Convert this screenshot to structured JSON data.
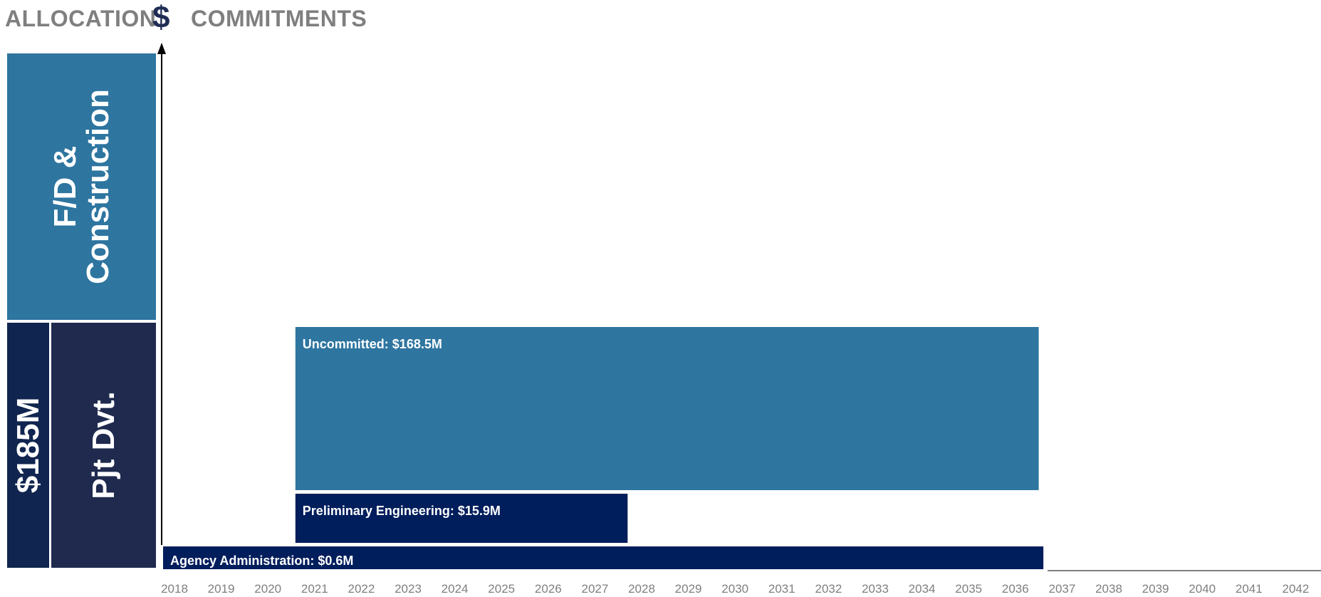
{
  "header": {
    "allocation": "ALLOCATION",
    "dollar": "$",
    "commitments": "COMMITMENTS"
  },
  "allocation_blocks": {
    "fd_construction": "F/D & Construction",
    "total": "$185M",
    "project_development": "Pjt Dvt."
  },
  "colors": {
    "fd_construction": "#2e75a0",
    "total": "#10254f",
    "project_development": "#1f2a4e",
    "uncommitted": "#2e75a0",
    "engineering": "#001d5c",
    "admin": "#001d5c",
    "axis": "#000000",
    "tick_text": "#7f7f7f"
  },
  "chart_data": {
    "type": "bar",
    "orientation": "horizontal-timeline",
    "x_ticks": [
      "2018",
      "2019",
      "2020",
      "2021",
      "2022",
      "2023",
      "2024",
      "2025",
      "2026",
      "2027",
      "2028",
      "2029",
      "2030",
      "2031",
      "2032",
      "2033",
      "2034",
      "2035",
      "2036",
      "2037",
      "2038",
      "2039",
      "2040",
      "2041",
      "2042"
    ],
    "xlim": [
      2018,
      2042
    ],
    "bars": [
      {
        "label": "Uncommitted: $168.5M",
        "start": 2021,
        "end": 2036.5,
        "amount_m": 168.5,
        "color_key": "uncommitted"
      },
      {
        "label": "Preliminary Engineering: $15.9M",
        "start": 2021,
        "end": 2027.7,
        "amount_m": 15.9,
        "color_key": "engineering"
      },
      {
        "label": "Agency Administration: $0.6M",
        "start": 2018,
        "end": 2036.6,
        "amount_m": 0.6,
        "color_key": "admin"
      }
    ]
  }
}
